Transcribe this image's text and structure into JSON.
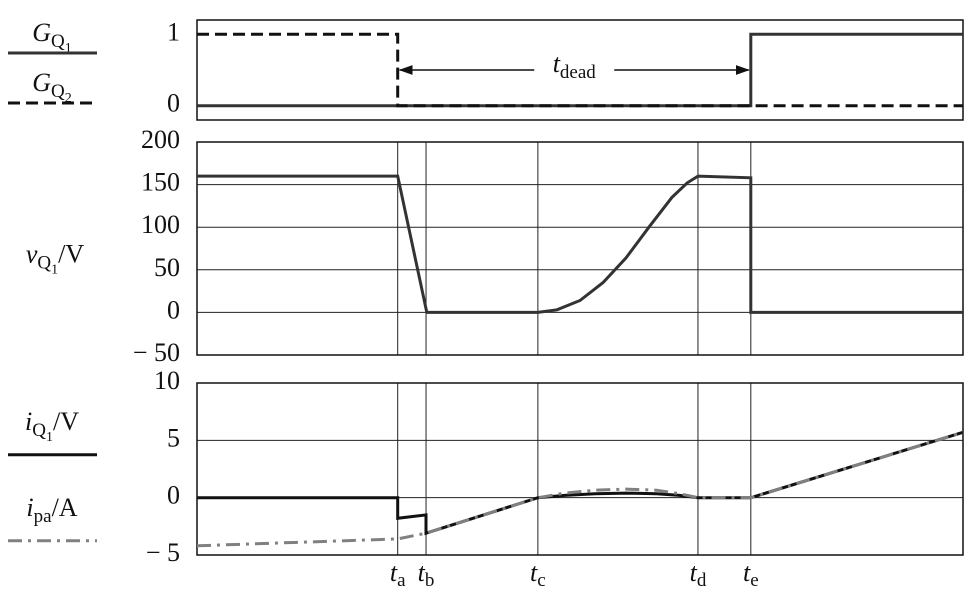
{
  "chart_data": [
    {
      "type": "line",
      "xlim": [
        0,
        100
      ],
      "ylim": [
        -0.2,
        1.2
      ],
      "yticks": [
        0,
        1
      ],
      "grid": false,
      "series": [
        {
          "name": [
            [
              "G",
              0
            ],
            [
              "Q",
              1
            ],
            [
              "1",
              2
            ]
          ],
          "color": "#333333",
          "dash": "solid",
          "x": [
            0,
            72.3,
            72.3,
            100
          ],
          "values": [
            0,
            0,
            1,
            1
          ]
        },
        {
          "name": [
            [
              "G",
              0
            ],
            [
              "Q",
              1
            ],
            [
              "2",
              2
            ]
          ],
          "color": "#111111",
          "dash": "dashed",
          "x": [
            0,
            26.2,
            26.2,
            100
          ],
          "values": [
            1,
            1,
            0,
            0
          ]
        }
      ],
      "annotation": [
        [
          "t",
          0
        ],
        [
          "dead",
          1
        ]
      ]
    },
    {
      "type": "line",
      "xlim": [
        0,
        100
      ],
      "ylim": [
        -50,
        200
      ],
      "yticks": [
        200,
        150,
        100,
        50,
        0,
        {
          "value": -50,
          "label": "− 50"
        }
      ],
      "grid": true,
      "ylabel": [
        [
          "v",
          0
        ],
        [
          "Q",
          1
        ],
        [
          "1",
          2
        ],
        [
          "/V",
          0
        ]
      ],
      "series": [
        {
          "color": "#333333",
          "dash": "solid",
          "x": [
            0,
            26.2,
            30,
            44.5,
            47,
            50,
            53,
            56,
            59,
            62,
            64,
            65.4,
            72.3,
            72.3,
            100
          ],
          "values": [
            160,
            160,
            0,
            0,
            3,
            14,
            35,
            64,
            100,
            135,
            152,
            160,
            158,
            0,
            0
          ]
        }
      ]
    },
    {
      "type": "line",
      "xlim": [
        0,
        100
      ],
      "ylim": [
        -5,
        10
      ],
      "yticks": [
        10,
        5,
        0,
        {
          "value": -5,
          "label": "− 5"
        }
      ],
      "grid": true,
      "xticks": [
        {
          "value": 26.2,
          "label": "t",
          "sub": "a"
        },
        {
          "value": 29.9,
          "label": "t",
          "sub": "b"
        },
        {
          "value": 44.5,
          "label": "t",
          "sub": "c"
        },
        {
          "value": 65.4,
          "label": "t",
          "sub": "d"
        },
        {
          "value": 72.3,
          "label": "t",
          "sub": "e"
        }
      ],
      "series": [
        {
          "name": [
            [
              "i",
              0
            ],
            [
              "Q",
              1
            ],
            [
              "1",
              2
            ],
            [
              "/V",
              0
            ]
          ],
          "color": "#111111",
          "dash": "solid",
          "x": [
            0,
            26.2,
            26.2,
            29.9,
            29.9,
            44.5,
            48,
            52,
            56,
            60,
            63,
            65.4,
            72.3,
            100
          ],
          "values": [
            0,
            0,
            -1.8,
            -1.5,
            -3.1,
            0,
            0.2,
            0.35,
            0.4,
            0.35,
            0.2,
            0,
            0,
            5.7
          ]
        },
        {
          "name": [
            [
              "i",
              0
            ],
            [
              "pa",
              1
            ],
            [
              "/A",
              0
            ]
          ],
          "color": "#808080",
          "dash": "dashdot",
          "x": [
            0,
            26.2,
            29.9,
            44.5,
            48,
            52,
            56,
            60,
            63,
            65.4,
            72.3,
            100
          ],
          "values": [
            -4.2,
            -3.6,
            -3.1,
            0,
            0.4,
            0.65,
            0.75,
            0.65,
            0.35,
            0,
            0,
            5.7
          ]
        }
      ]
    }
  ]
}
